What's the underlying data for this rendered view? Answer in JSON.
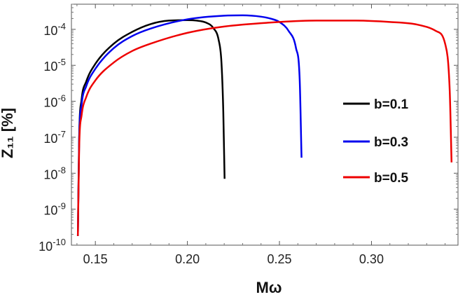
{
  "chart_data": {
    "type": "line",
    "title": "",
    "xlabel": "Mω",
    "ylabel": "Z₁₁ [%]",
    "yscale": "log",
    "xlim": [
      0.137,
      0.347
    ],
    "ylim": [
      1e-10,
      0.0005
    ],
    "x_ticks": [
      0.15,
      0.2,
      0.25,
      0.3
    ],
    "x_tick_labels": [
      "0.15",
      "0.20",
      "0.25",
      "0.30"
    ],
    "y_ticks": [
      1e-10,
      1e-09,
      1e-08,
      1e-07,
      1e-06,
      1e-05,
      0.0001
    ],
    "y_tick_bases": [
      "10",
      "10",
      "10",
      "10",
      "10",
      "10",
      "10"
    ],
    "y_tick_exponents": [
      "-10",
      "-9",
      "-8",
      "-7",
      "-6",
      "-5",
      "-4"
    ],
    "grid": false,
    "legend_position": "right",
    "series": [
      {
        "name": "b=0.1",
        "color": "#000000",
        "x": [
          0.1405,
          0.1412,
          0.1425,
          0.145,
          0.15,
          0.16,
          0.17,
          0.18,
          0.19,
          0.2,
          0.205,
          0.21,
          0.214,
          0.217,
          0.2185,
          0.2195,
          0.2202
        ],
        "y": [
          1.8e-10,
          1e-07,
          1.1e-06,
          3.5e-06,
          1.1e-05,
          4e-05,
          8.5e-05,
          0.00014,
          0.000175,
          0.00018,
          0.000175,
          0.000155,
          0.00011,
          5e-05,
          1.2e-05,
          5e-07,
          7e-09
        ]
      },
      {
        "name": "b=0.3",
        "color": "#0000ee",
        "x": [
          0.1405,
          0.1412,
          0.1425,
          0.145,
          0.15,
          0.16,
          0.17,
          0.18,
          0.2,
          0.22,
          0.23,
          0.24,
          0.245,
          0.25,
          0.255,
          0.259,
          0.261,
          0.262
        ],
        "y": [
          1.8e-10,
          8e-08,
          8e-07,
          2.6e-06,
          8e-06,
          3e-05,
          6.5e-05,
          0.000105,
          0.00019,
          0.00024,
          0.000245,
          0.000225,
          0.0002,
          0.00016,
          9e-05,
          3e-05,
          4e-06,
          2.7e-08
        ]
      },
      {
        "name": "b=0.5",
        "color": "#ee0000",
        "x": [
          0.1405,
          0.1412,
          0.1425,
          0.145,
          0.15,
          0.16,
          0.17,
          0.18,
          0.2,
          0.22,
          0.25,
          0.27,
          0.29,
          0.31,
          0.325,
          0.335,
          0.34,
          0.3425,
          0.3435
        ],
        "y": [
          1.8e-10,
          5e-08,
          4e-07,
          1.3e-06,
          3.8e-06,
          1.2e-05,
          2.5e-05,
          4e-05,
          8e-05,
          0.00012,
          0.00016,
          0.000175,
          0.000175,
          0.00016,
          0.000135,
          9e-05,
          4e-05,
          2e-06,
          2e-08
        ]
      }
    ]
  }
}
